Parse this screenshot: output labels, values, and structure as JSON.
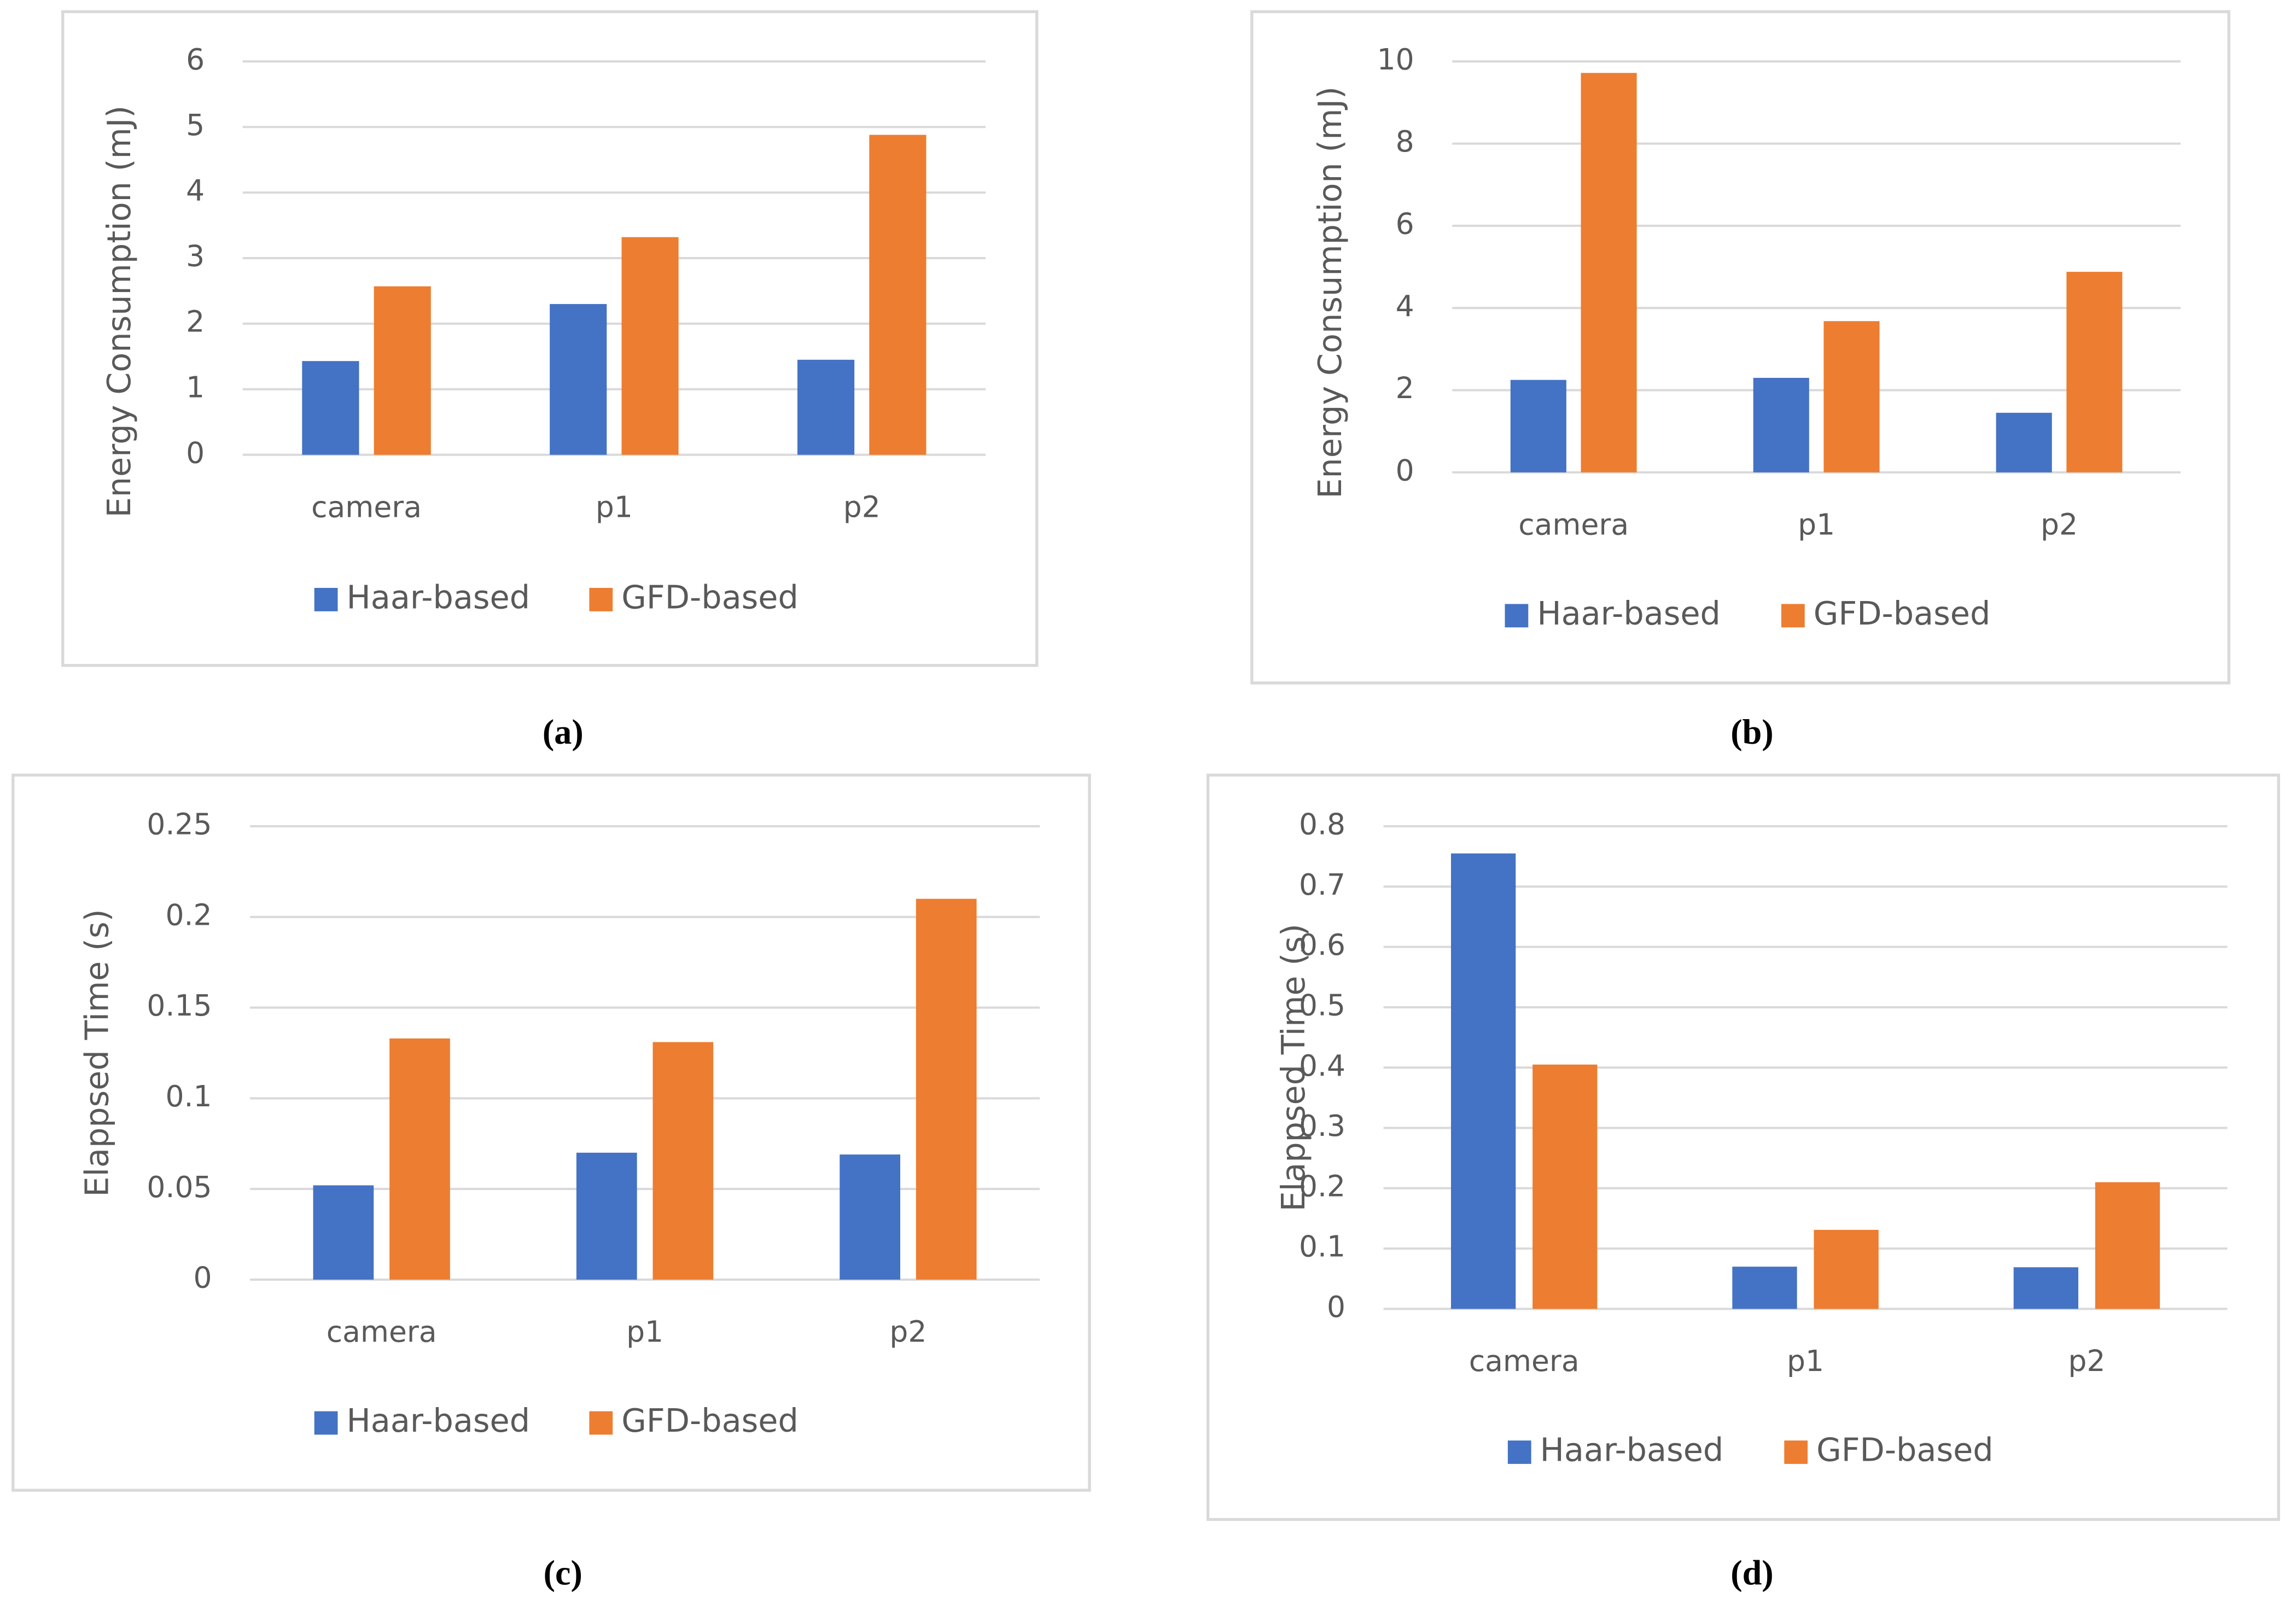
{
  "chart_data": [
    {
      "type": "bar",
      "caption": "(a)",
      "ylabel": "Energy Consumption (mJ)",
      "categories": [
        "camera",
        "p1",
        "p2"
      ],
      "series": [
        {
          "name": "Haar-based",
          "color": "#4472c4",
          "values": [
            1.43,
            2.3,
            1.45
          ]
        },
        {
          "name": "GFD-based",
          "color": "#ed7d31",
          "values": [
            2.57,
            3.32,
            4.88
          ]
        }
      ],
      "ylim": [
        0,
        6
      ],
      "yticks": [
        0,
        1,
        2,
        3,
        4,
        5,
        6
      ],
      "grid": true,
      "legend": "bottom"
    },
    {
      "type": "bar",
      "caption": "(b)",
      "ylabel": "Energy Consumption (mJ)",
      "categories": [
        "camera",
        "p1",
        "p2"
      ],
      "series": [
        {
          "name": "Haar-based",
          "color": "#4472c4",
          "values": [
            2.25,
            2.3,
            1.45
          ]
        },
        {
          "name": "GFD-based",
          "color": "#ed7d31",
          "values": [
            9.72,
            3.68,
            4.88
          ]
        }
      ],
      "ylim": [
        0,
        10
      ],
      "yticks": [
        0,
        2,
        4,
        6,
        8,
        10
      ],
      "grid": true,
      "legend": "bottom"
    },
    {
      "type": "bar",
      "caption": "(c)",
      "ylabel": "Elappsed Time (s)",
      "categories": [
        "camera",
        "p1",
        "p2"
      ],
      "series": [
        {
          "name": "Haar-based",
          "color": "#4472c4",
          "values": [
            0.052,
            0.07,
            0.069
          ]
        },
        {
          "name": "GFD-based",
          "color": "#ed7d31",
          "values": [
            0.133,
            0.131,
            0.21
          ]
        }
      ],
      "ylim": [
        0,
        0.25
      ],
      "yticks": [
        0,
        0.05,
        0.1,
        0.15,
        0.2,
        0.25
      ],
      "grid": true,
      "legend": "bottom"
    },
    {
      "type": "bar",
      "caption": "(d)",
      "ylabel": "Elappsed Time (s)",
      "categories": [
        "camera",
        "p1",
        "p2"
      ],
      "series": [
        {
          "name": "Haar-based",
          "color": "#4472c4",
          "values": [
            0.755,
            0.07,
            0.069
          ]
        },
        {
          "name": "GFD-based",
          "color": "#ed7d31",
          "values": [
            0.405,
            0.131,
            0.21
          ]
        }
      ],
      "ylim": [
        0,
        0.8
      ],
      "yticks": [
        0,
        0.1,
        0.2,
        0.3,
        0.4,
        0.5,
        0.6,
        0.7,
        0.8
      ],
      "grid": true,
      "legend": "bottom"
    }
  ]
}
